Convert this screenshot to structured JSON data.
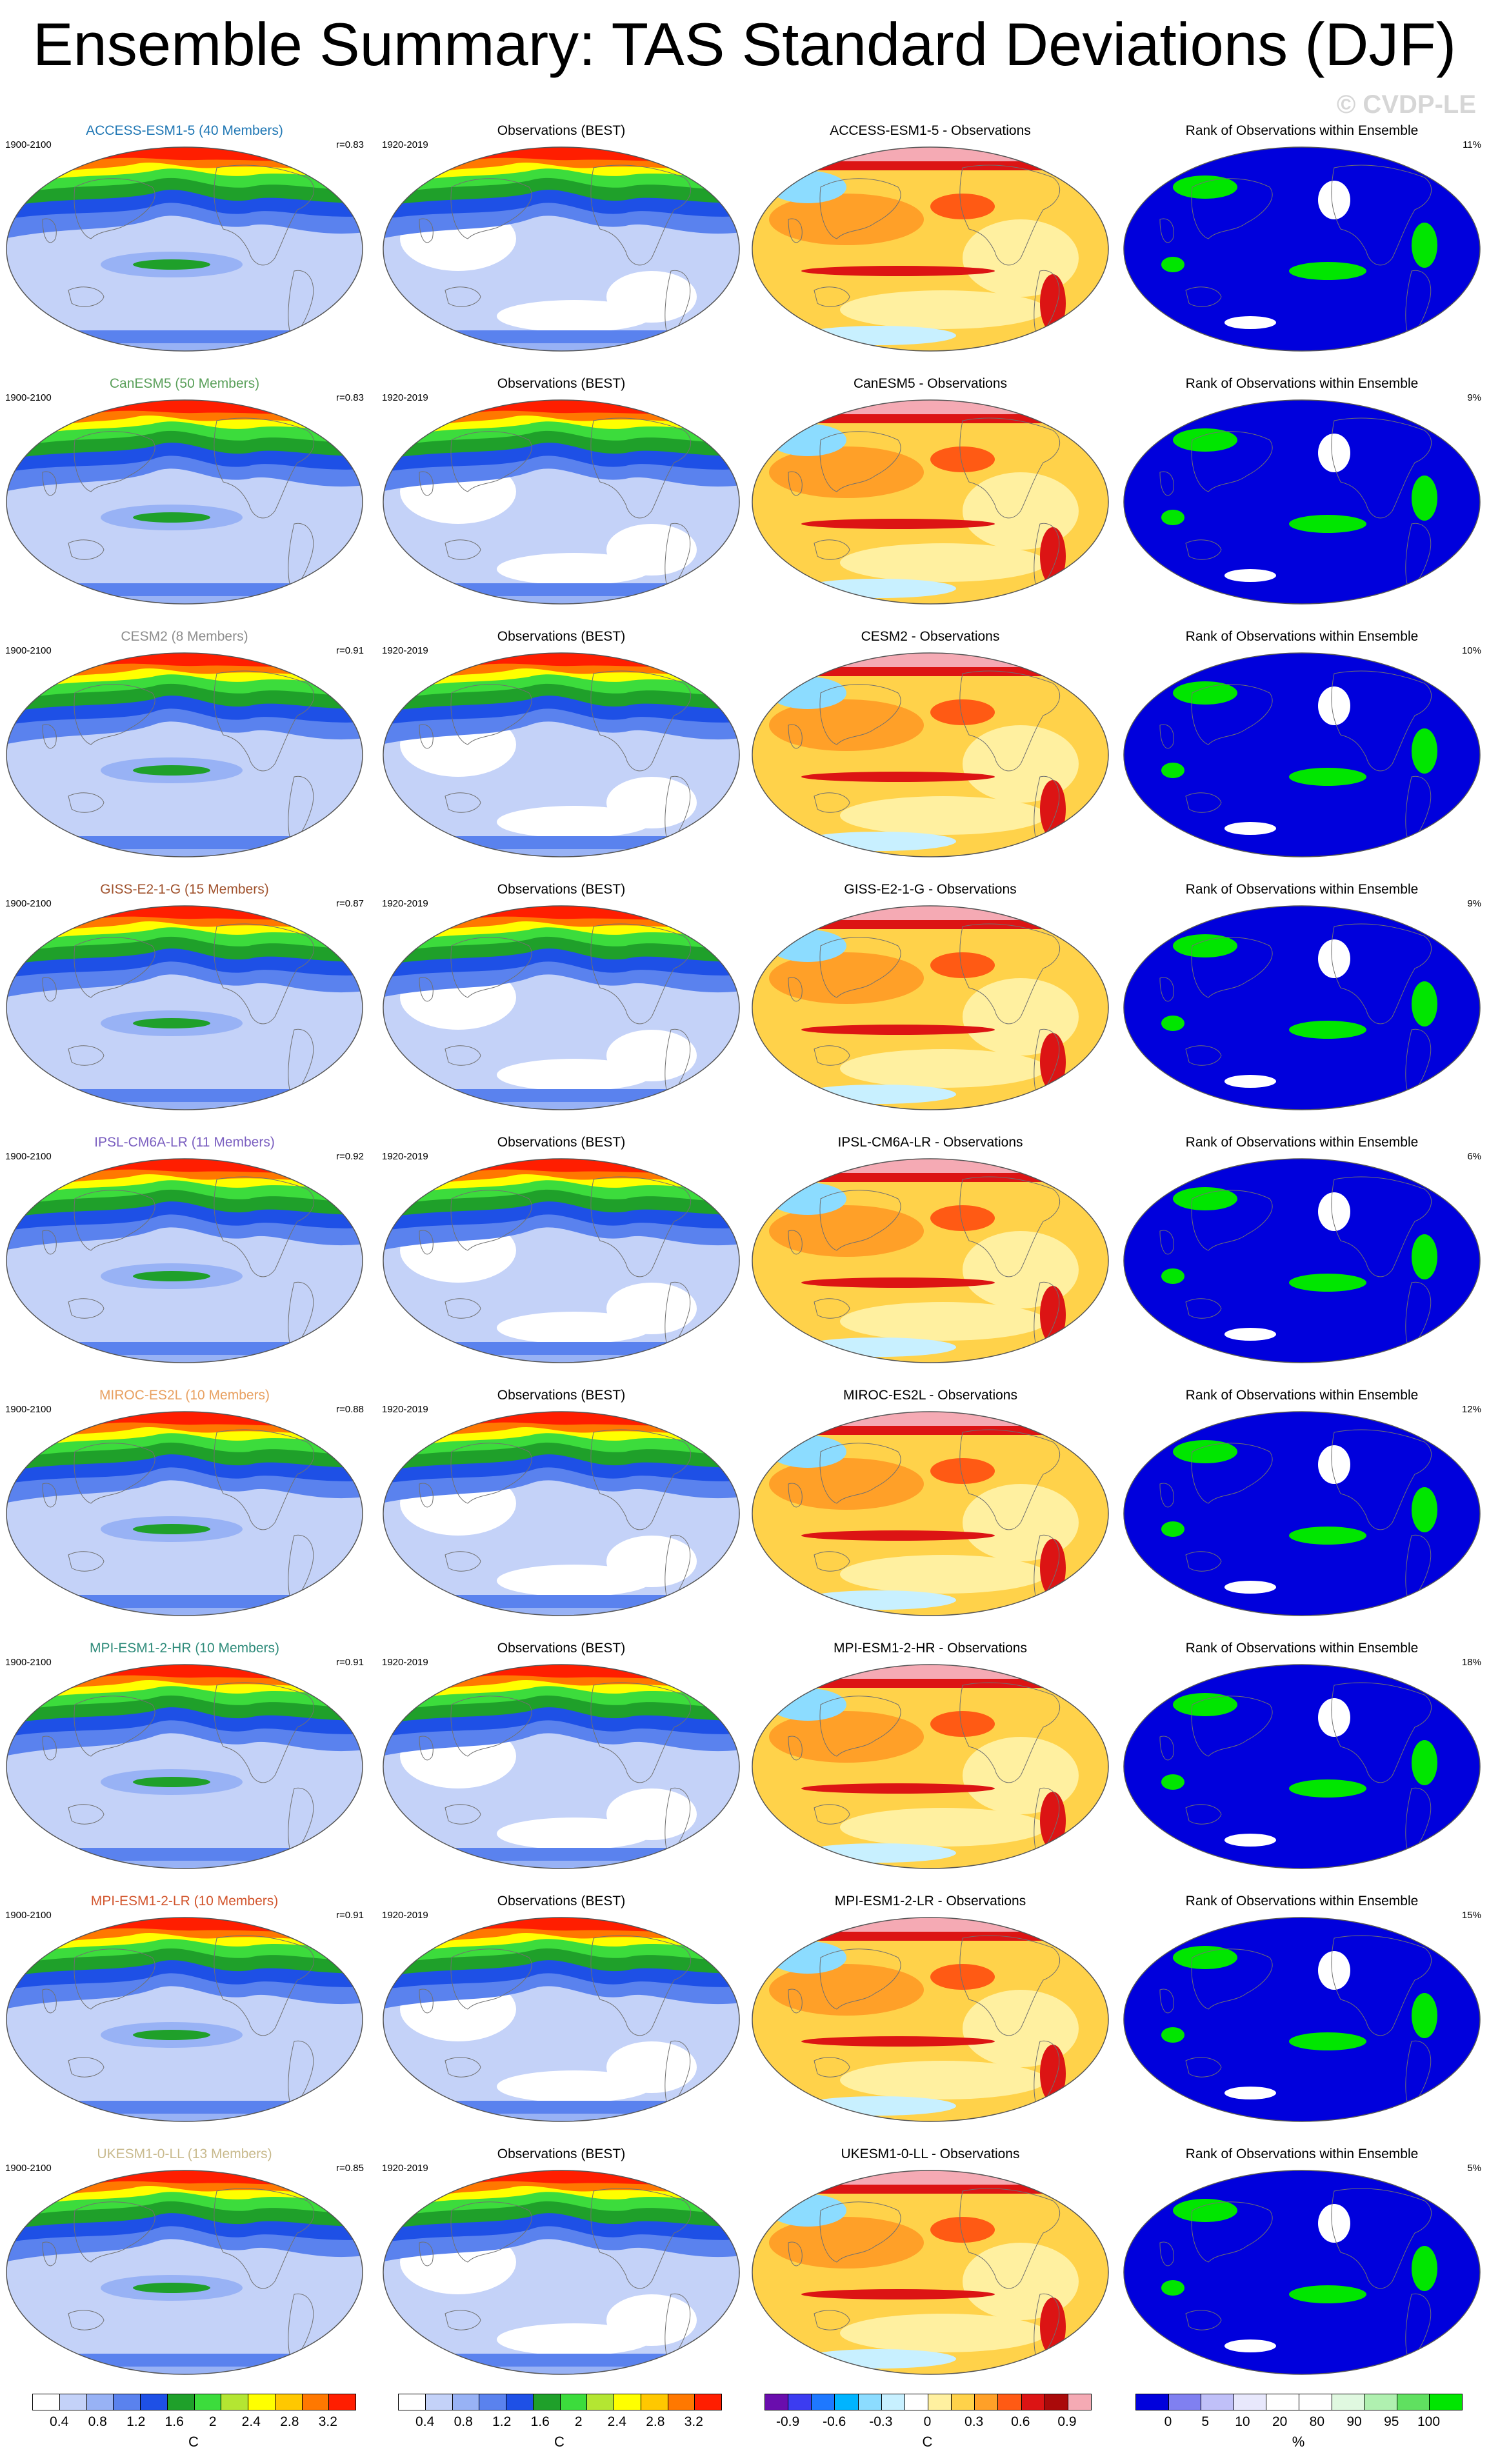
{
  "title": "Ensemble Summary: TAS Standard Deviations (DJF)",
  "watermark": "© CVDP-LE",
  "column_titles": {
    "observations": "Observations (BEST)",
    "rank": "Rank of Observations within Ensemble"
  },
  "rows": [
    {
      "model": "ACCESS-ESM1-5 (40 Members)",
      "model_color": "#1f77b4",
      "period_model": "1900-2100",
      "r": "r=0.83",
      "period_obs": "1920-2019",
      "diff_title": "ACCESS-ESM1-5 - Observations",
      "rank_pct": "11%"
    },
    {
      "model": "CanESM5 (50 Members)",
      "model_color": "#5aa05a",
      "period_model": "1900-2100",
      "r": "r=0.83",
      "period_obs": "1920-2019",
      "diff_title": "CanESM5 - Observations",
      "rank_pct": "9%"
    },
    {
      "model": "CESM2 (8 Members)",
      "model_color": "#8c8c8c",
      "period_model": "1900-2100",
      "r": "r=0.91",
      "period_obs": "1920-2019",
      "diff_title": "CESM2 - Observations",
      "rank_pct": "10%"
    },
    {
      "model": "GISS-E2-1-G (15 Members)",
      "model_color": "#a0522d",
      "period_model": "1900-2100",
      "r": "r=0.87",
      "period_obs": "1920-2019",
      "diff_title": "GISS-E2-1-G - Observations",
      "rank_pct": "9%"
    },
    {
      "model": "IPSL-CM6A-LR (11 Members)",
      "model_color": "#7b5fc0",
      "period_model": "1900-2100",
      "r": "r=0.92",
      "period_obs": "1920-2019",
      "diff_title": "IPSL-CM6A-LR - Observations",
      "rank_pct": "6%"
    },
    {
      "model": "MIROC-ES2L (10 Members)",
      "model_color": "#e8a060",
      "period_model": "1900-2100",
      "r": "r=0.88",
      "period_obs": "1920-2019",
      "diff_title": "MIROC-ES2L - Observations",
      "rank_pct": "12%"
    },
    {
      "model": "MPI-ESM1-2-HR (10 Members)",
      "model_color": "#2e8b7a",
      "period_model": "1900-2100",
      "r": "r=0.91",
      "period_obs": "1920-2019",
      "diff_title": "MPI-ESM1-2-HR - Observations",
      "rank_pct": "18%"
    },
    {
      "model": "MPI-ESM1-2-LR (10 Members)",
      "model_color": "#d2552d",
      "period_model": "1900-2100",
      "r": "r=0.91",
      "period_obs": "1920-2019",
      "diff_title": "MPI-ESM1-2-LR - Observations",
      "rank_pct": "15%"
    },
    {
      "model": "UKESM1-0-LL (13 Members)",
      "model_color": "#c8b98c",
      "period_model": "1900-2100",
      "r": "r=0.85",
      "period_obs": "1920-2019",
      "diff_title": "UKESM1-0-LL - Observations",
      "rank_pct": "5%"
    }
  ],
  "colorbars": {
    "std": {
      "colors": [
        "#ffffff",
        "#c4d2f8",
        "#98b2f5",
        "#5a82ee",
        "#1e50e6",
        "#1fa02a",
        "#3cdc3c",
        "#b4e632",
        "#ffff00",
        "#ffc800",
        "#ff7800",
        "#ff1e00"
      ],
      "labels": [
        "0.4",
        "0.8",
        "1.2",
        "1.6",
        "2",
        "2.4",
        "2.8",
        "3.2"
      ],
      "unit": "C"
    },
    "diff": {
      "colors": [
        "#6a0dad",
        "#3c3cf0",
        "#1e78ff",
        "#00b4ff",
        "#8cdcff",
        "#c8f0ff",
        "#ffffff",
        "#fff0a0",
        "#ffd24a",
        "#ffa028",
        "#ff5a14",
        "#dc1414",
        "#aa0a0a",
        "#f5aab4"
      ],
      "labels": [
        "-0.9",
        "-0.6",
        "-0.3",
        "0",
        "0.3",
        "0.6",
        "0.9"
      ],
      "unit": "C"
    },
    "rank": {
      "colors": [
        "#0000dc",
        "#8080f0",
        "#c0c0f8",
        "#e8e8fc",
        "#ffffff",
        "#ffffff",
        "#e0f8e0",
        "#b0f0b0",
        "#60e060",
        "#00e600"
      ],
      "labels": [
        "0",
        "5",
        "10",
        "20",
        "80",
        "90",
        "95",
        "100"
      ],
      "unit": "%"
    }
  }
}
